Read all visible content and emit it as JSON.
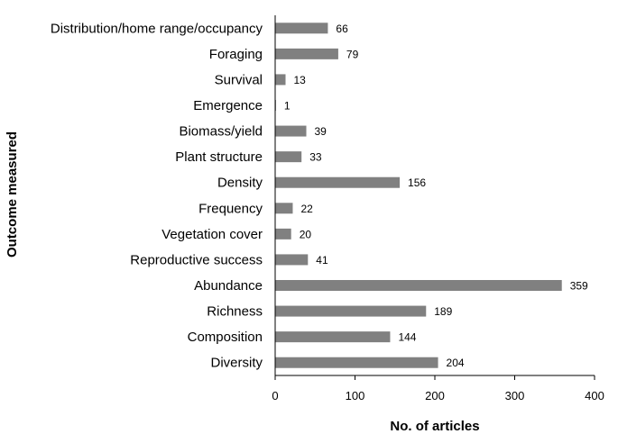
{
  "chart_data": {
    "type": "bar",
    "orientation": "horizontal",
    "title": "",
    "xlabel": "No. of articles",
    "ylabel": "Outcome measured",
    "xlim": [
      0,
      400
    ],
    "xticks": [
      0,
      100,
      200,
      300,
      400
    ],
    "grid": false,
    "bar_color": "#808080",
    "categories": [
      "Distribution/home range/occupancy",
      "Foraging",
      "Survival",
      "Emergence",
      "Biomass/yield",
      "Plant structure",
      "Density",
      "Frequency",
      "Vegetation cover",
      "Reproductive success",
      "Abundance",
      "Richness",
      "Composition",
      "Diversity"
    ],
    "values": [
      66,
      79,
      13,
      1,
      39,
      33,
      156,
      22,
      20,
      41,
      359,
      189,
      144,
      204
    ]
  }
}
